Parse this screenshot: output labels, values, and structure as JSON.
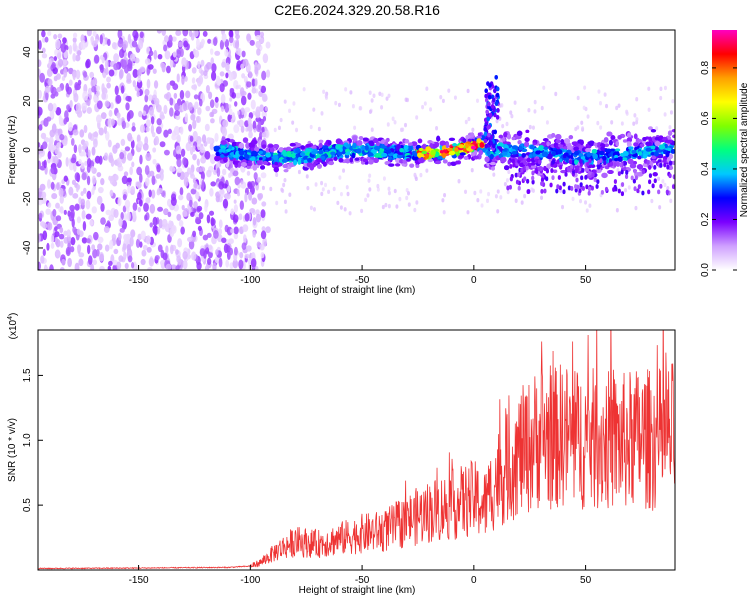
{
  "title": "C2E6.2024.329.20.58.R16",
  "colors": {
    "snr_line": "#ee3333",
    "frame": "#000000",
    "background": "#ffffff"
  },
  "chart_data": [
    {
      "type": "heatmap",
      "title": "C2E6.2024.329.20.58.R16",
      "xlabel": "Height of straight line (km)",
      "ylabel": "Frequency (Hz)",
      "xlim": [
        -195,
        90
      ],
      "ylim": [
        -49,
        49
      ],
      "x_ticks": [
        -150,
        -100,
        -50,
        0,
        50
      ],
      "y_ticks": [
        -40,
        -20,
        0,
        20,
        40
      ],
      "colorbar": {
        "label": "Normalized spectral amplitude",
        "range": [
          0,
          0.95
        ],
        "ticks": [
          "0.0",
          "0.2",
          "0.4",
          "0.6",
          "0.8"
        ],
        "tick_values": [
          0,
          0.2,
          0.4,
          0.6,
          0.8
        ],
        "colormap": [
          "#ffffff",
          "#cfa0ff",
          "#7a00ff",
          "#0000ff",
          "#00c8ff",
          "#00ff80",
          "#80ff00",
          "#ffff00",
          "#ffa000",
          "#ff0000",
          "#ff00c0"
        ]
      },
      "features": {
        "noise_region_x": [
          -195,
          -100
        ],
        "signal_band_x": [
          -115,
          90
        ],
        "signal_band_freq_center": [
          -3,
          3
        ],
        "peak_region_x": [
          -25,
          5
        ],
        "peak_amplitude": 0.95,
        "spike_x": 8,
        "spike_freq_range": [
          0,
          30
        ]
      }
    },
    {
      "type": "line",
      "xlabel": "Height of straight line (km)",
      "ylabel": "SNR (10 * v/v)",
      "yscale_label": "(x10",
      "yscale_exp": "4",
      "yscale_close": ")",
      "xlim": [
        -195,
        90
      ],
      "ylim": [
        0,
        1.85
      ],
      "x_ticks": [
        -150,
        -100,
        -50,
        0,
        50
      ],
      "y_ticks": [
        0.5,
        1.0,
        1.5
      ],
      "y_tick_labels": [
        "0.5",
        "1.0",
        "1.5"
      ],
      "series": [
        {
          "x": [
            -195,
            -150,
            -110,
            -100,
            -95,
            -88,
            -80,
            -70,
            -60,
            -50,
            -40,
            -30,
            -20,
            -10,
            0,
            5,
            10,
            15,
            20,
            25,
            30,
            35,
            40,
            45,
            50,
            55,
            60,
            65,
            70,
            75,
            80,
            85,
            90
          ],
          "y": [
            0.012,
            0.015,
            0.02,
            0.03,
            0.06,
            0.15,
            0.22,
            0.2,
            0.24,
            0.28,
            0.3,
            0.38,
            0.45,
            0.5,
            0.55,
            0.5,
            0.7,
            0.78,
            0.9,
            0.95,
            1.05,
            1.0,
            1.05,
            1.0,
            1.02,
            1.0,
            1.0,
            0.98,
            1.0,
            1.02,
            1.0,
            1.02,
            1.05
          ]
        }
      ]
    }
  ]
}
